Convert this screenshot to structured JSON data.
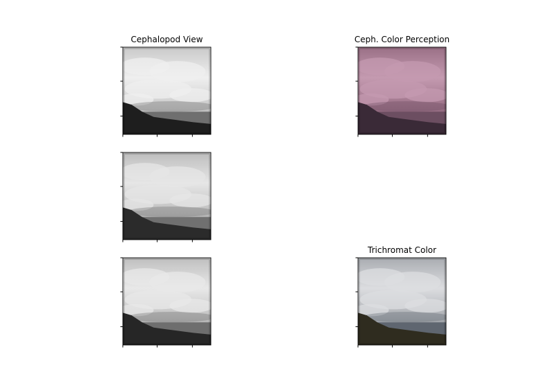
{
  "chart_data": [
    {
      "type": "image",
      "panel": "row-1-col-1",
      "title": "Cephalopod View",
      "image_style": "grayscale-contrast",
      "colors": {
        "sky": "#c9c9c9",
        "cloud": "#efefef",
        "sea": "#6f6f6f",
        "land": "#1e1e1e"
      }
    },
    {
      "type": "image",
      "panel": "row-1-col-2",
      "title": "Ceph. Color Perception",
      "image_style": "pink-tint",
      "colors": {
        "sky": "#9a7086",
        "cloud": "#c49ab0",
        "sea": "#6c4e61",
        "land": "#3a2a37"
      }
    },
    {
      "type": "image",
      "panel": "row-2-col-1",
      "title": "",
      "image_style": "grayscale",
      "colors": {
        "sky": "#bdbdbd",
        "cloud": "#e6e6e6",
        "sea": "#707070",
        "land": "#2b2b2b"
      }
    },
    {
      "type": "image",
      "panel": "row-3-col-1",
      "title": "",
      "image_style": "grayscale",
      "colors": {
        "sky": "#bfbfbf",
        "cloud": "#e8e8e8",
        "sea": "#6e6e6e",
        "land": "#262626"
      }
    },
    {
      "type": "image",
      "panel": "row-3-col-2",
      "title": "Trichromat Color",
      "image_style": "natural-color",
      "colors": {
        "sky": "#a9acb1",
        "cloud": "#dcdde0",
        "sea": "#5f6670",
        "land": "#2f2c1f"
      }
    }
  ]
}
